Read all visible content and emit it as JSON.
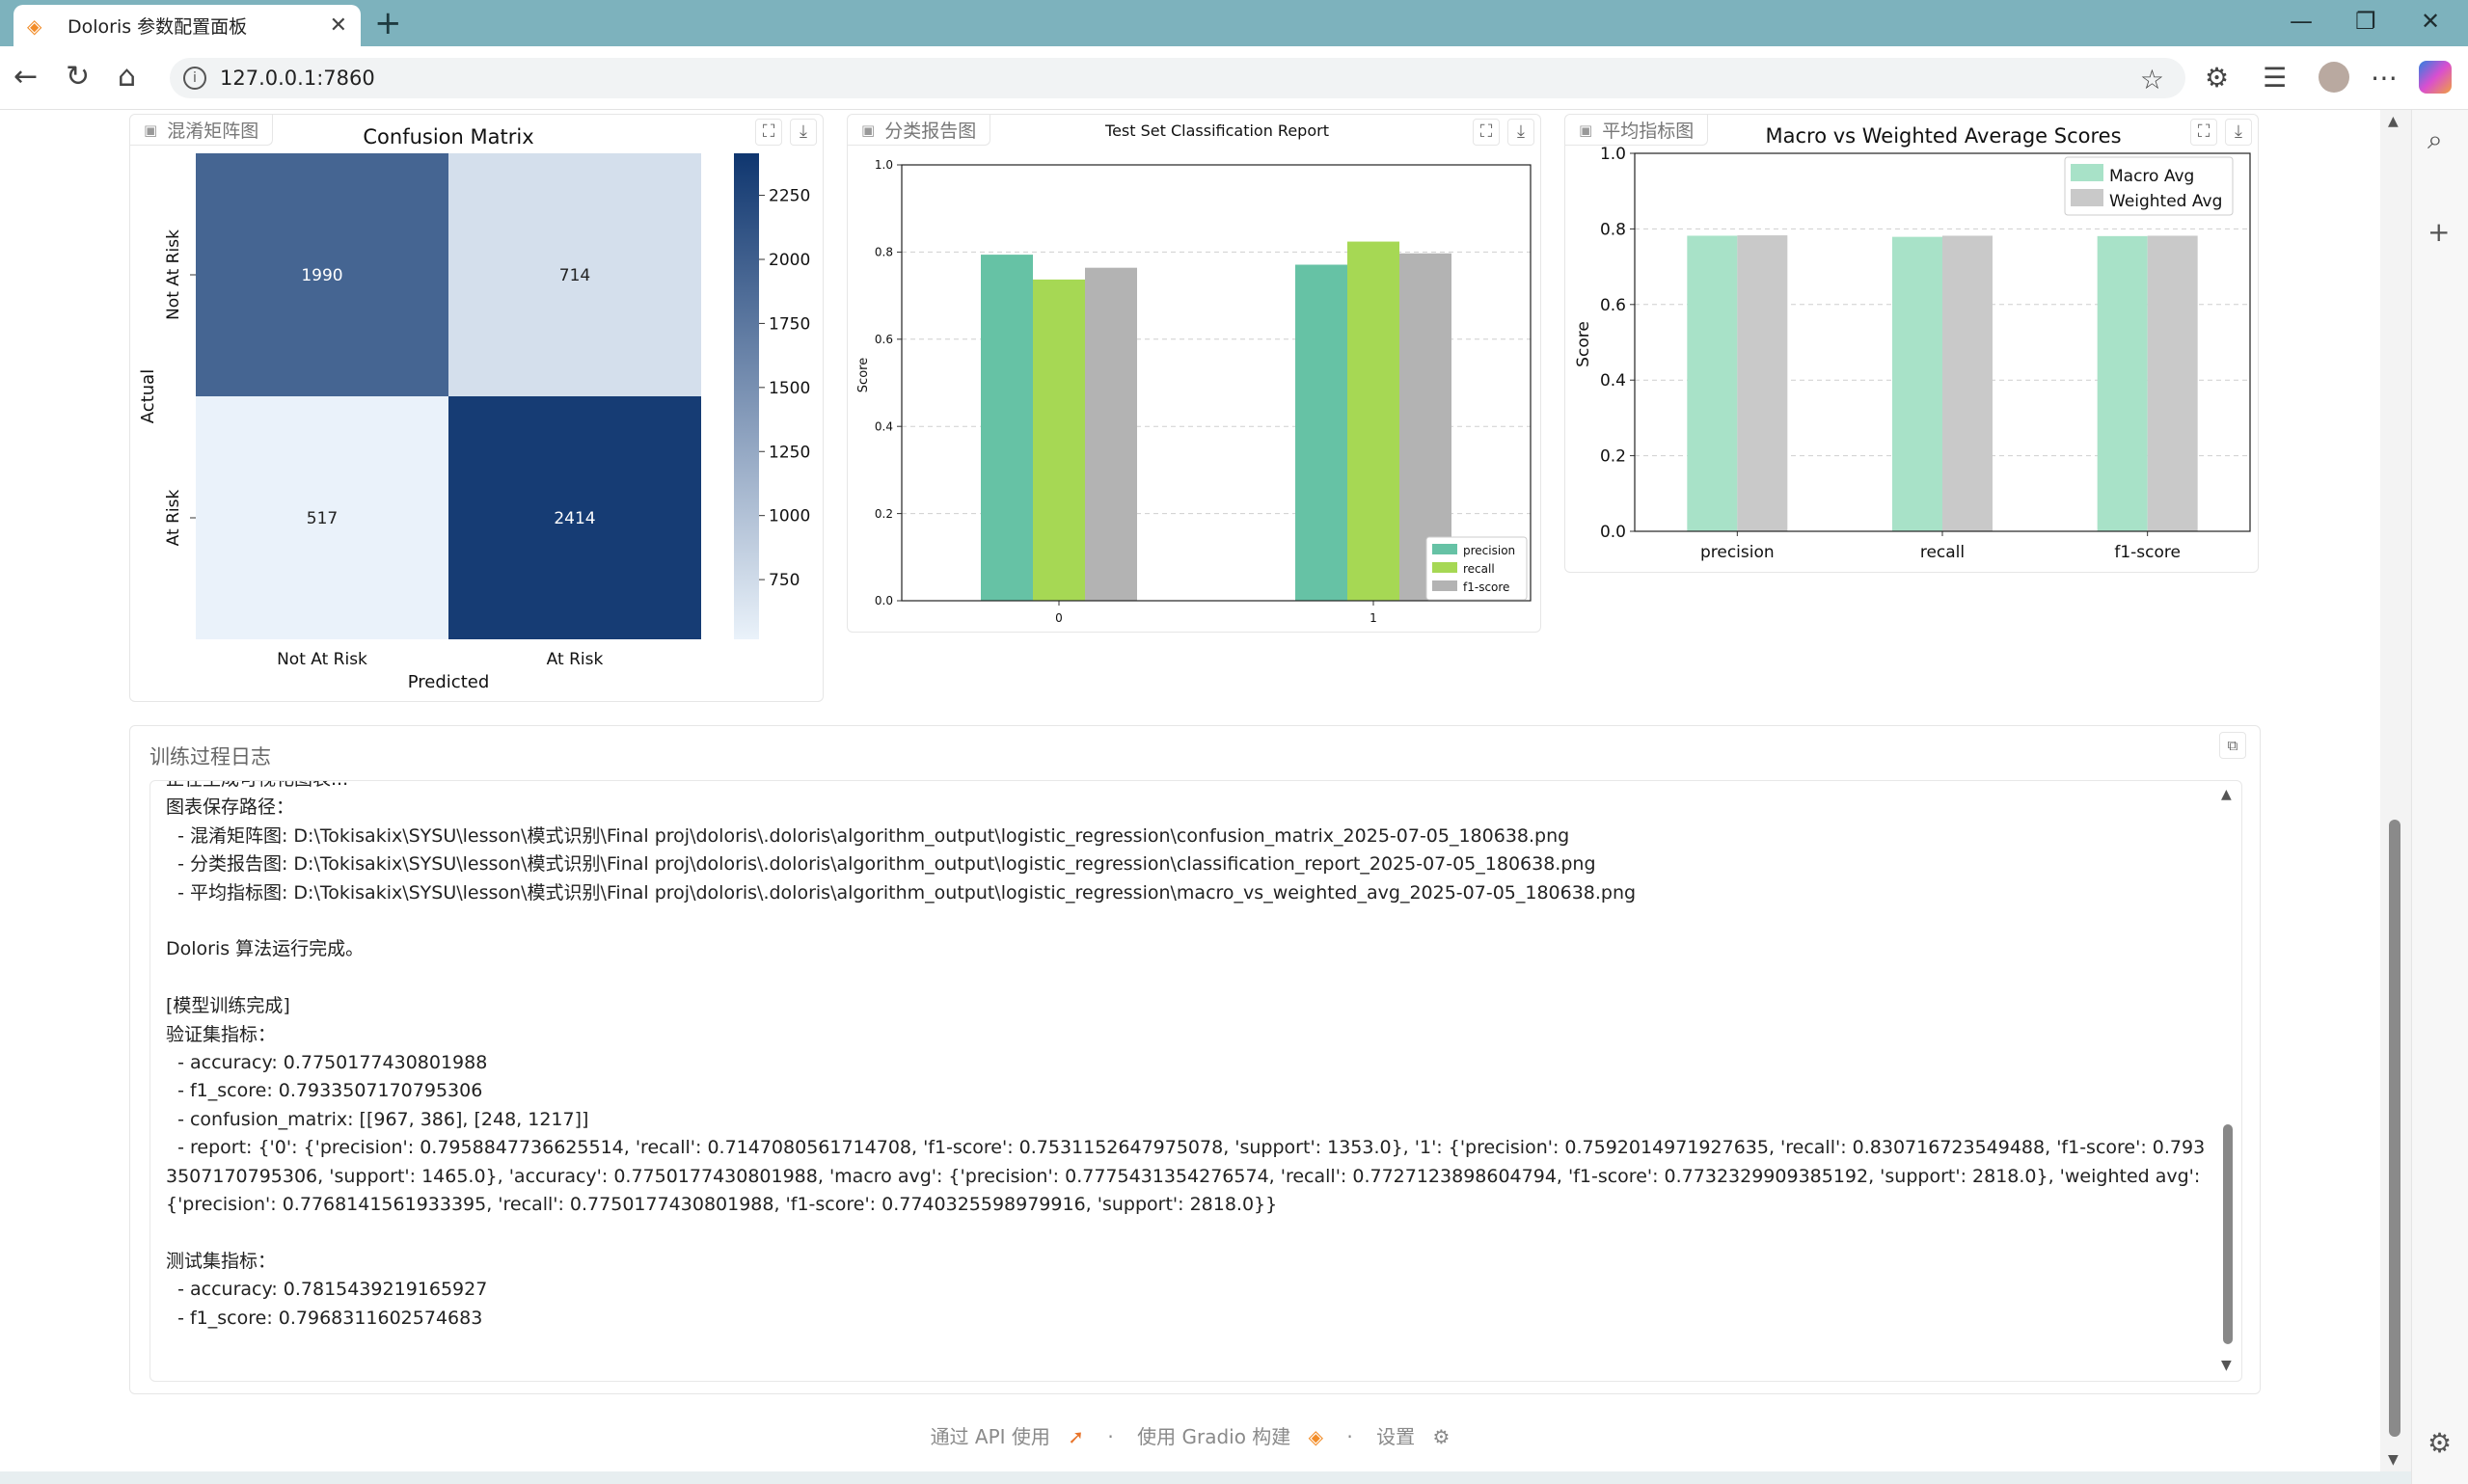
{
  "browser": {
    "tab_title": "Doloris 参数配置面板",
    "url": "127.0.0.1:7860"
  },
  "colors": {
    "macro": "#a8e2c8",
    "weighted": "#c9c9c9",
    "precision": "#66c2a5",
    "recall": "#a6d854",
    "f1": "#b3b3b3"
  },
  "panels": {
    "cm_label": "混淆矩阵图",
    "cr_label": "分类报告图",
    "avg_label": "平均指标图"
  },
  "chart_data": [
    {
      "type": "heatmap",
      "title": "Confusion Matrix",
      "xlabel": "Predicted",
      "ylabel": "Actual",
      "x_categories": [
        "Not At Risk",
        "At Risk"
      ],
      "y_categories": [
        "Not At Risk",
        "At Risk"
      ],
      "values": [
        [
          1990,
          714
        ],
        [
          517,
          2414
        ]
      ],
      "colorbar_ticks": [
        750,
        1000,
        1250,
        1500,
        1750,
        2000,
        2250
      ],
      "colorbar_range": [
        517,
        2414
      ],
      "colormap": "Blues"
    },
    {
      "type": "bar",
      "title": "Test Set Classification Report",
      "xlabel": "",
      "ylabel": "Score",
      "categories": [
        "0",
        "1"
      ],
      "ylim": [
        0,
        1.0
      ],
      "yticks": [
        "0.0",
        "0.2",
        "0.4",
        "0.6",
        "0.8",
        "1.0"
      ],
      "grid": true,
      "legend_position": "bottom-right",
      "series": [
        {
          "name": "precision",
          "values": [
            0.794,
            0.771
          ]
        },
        {
          "name": "recall",
          "values": [
            0.737,
            0.824
          ]
        },
        {
          "name": "f1-score",
          "values": [
            0.764,
            0.797
          ]
        }
      ]
    },
    {
      "type": "bar",
      "title": "Macro vs Weighted Average Scores",
      "xlabel": "",
      "ylabel": "Score",
      "categories": [
        "precision",
        "recall",
        "f1-score"
      ],
      "ylim": [
        0,
        1.0
      ],
      "yticks": [
        "0.0",
        "0.2",
        "0.4",
        "0.6",
        "0.8",
        "1.0"
      ],
      "grid": true,
      "legend_position": "top-right",
      "series": [
        {
          "name": "Macro Avg",
          "values": [
            0.782,
            0.779,
            0.781
          ]
        },
        {
          "name": "Weighted Avg",
          "values": [
            0.783,
            0.782,
            0.782
          ]
        }
      ]
    }
  ],
  "log": {
    "label": "训练过程日志",
    "lines": [
      "正在生成可视化图表...",
      "图表保存路径：",
      "  - 混淆矩阵图: D:\\Tokisakix\\SYSU\\lesson\\模式识别\\Final proj\\doloris\\.doloris\\algorithm_output\\logistic_regression\\confusion_matrix_2025-07-05_180638.png",
      "  - 分类报告图: D:\\Tokisakix\\SYSU\\lesson\\模式识别\\Final proj\\doloris\\.doloris\\algorithm_output\\logistic_regression\\classification_report_2025-07-05_180638.png",
      "  - 平均指标图: D:\\Tokisakix\\SYSU\\lesson\\模式识别\\Final proj\\doloris\\.doloris\\algorithm_output\\logistic_regression\\macro_vs_weighted_avg_2025-07-05_180638.png",
      "",
      "Doloris 算法运行完成。",
      "",
      "[模型训练完成]",
      "验证集指标：",
      "  - accuracy: 0.7750177430801988",
      "  - f1_score: 0.7933507170795306",
      "  - confusion_matrix: [[967, 386], [248, 1217]]",
      "  - report: {'0': {'precision': 0.7958847736625514, 'recall': 0.7147080561714708, 'f1-score': 0.7531152647975078, 'support': 1353.0}, '1': {'precision': 0.7592014971927635, 'recall': 0.830716723549488, 'f1-score': 0.7933507170795306, 'support': 1465.0}, 'accuracy': 0.7750177430801988, 'macro avg': {'precision': 0.7775431354276574, 'recall': 0.7727123898604794, 'f1-score': 0.7732329909385192, 'support': 2818.0}, 'weighted avg': {'precision': 0.7768141561933395, 'recall': 0.7750177430801988, 'f1-score': 0.7740325598979916, 'support': 2818.0}}",
      "",
      "测试集指标：",
      "  - accuracy: 0.7815439219165927",
      "  - f1_score: 0.7968311602574683"
    ]
  },
  "footer": {
    "api": "通过 API 使用",
    "built": "使用 Gradio 构建",
    "settings": "设置"
  }
}
